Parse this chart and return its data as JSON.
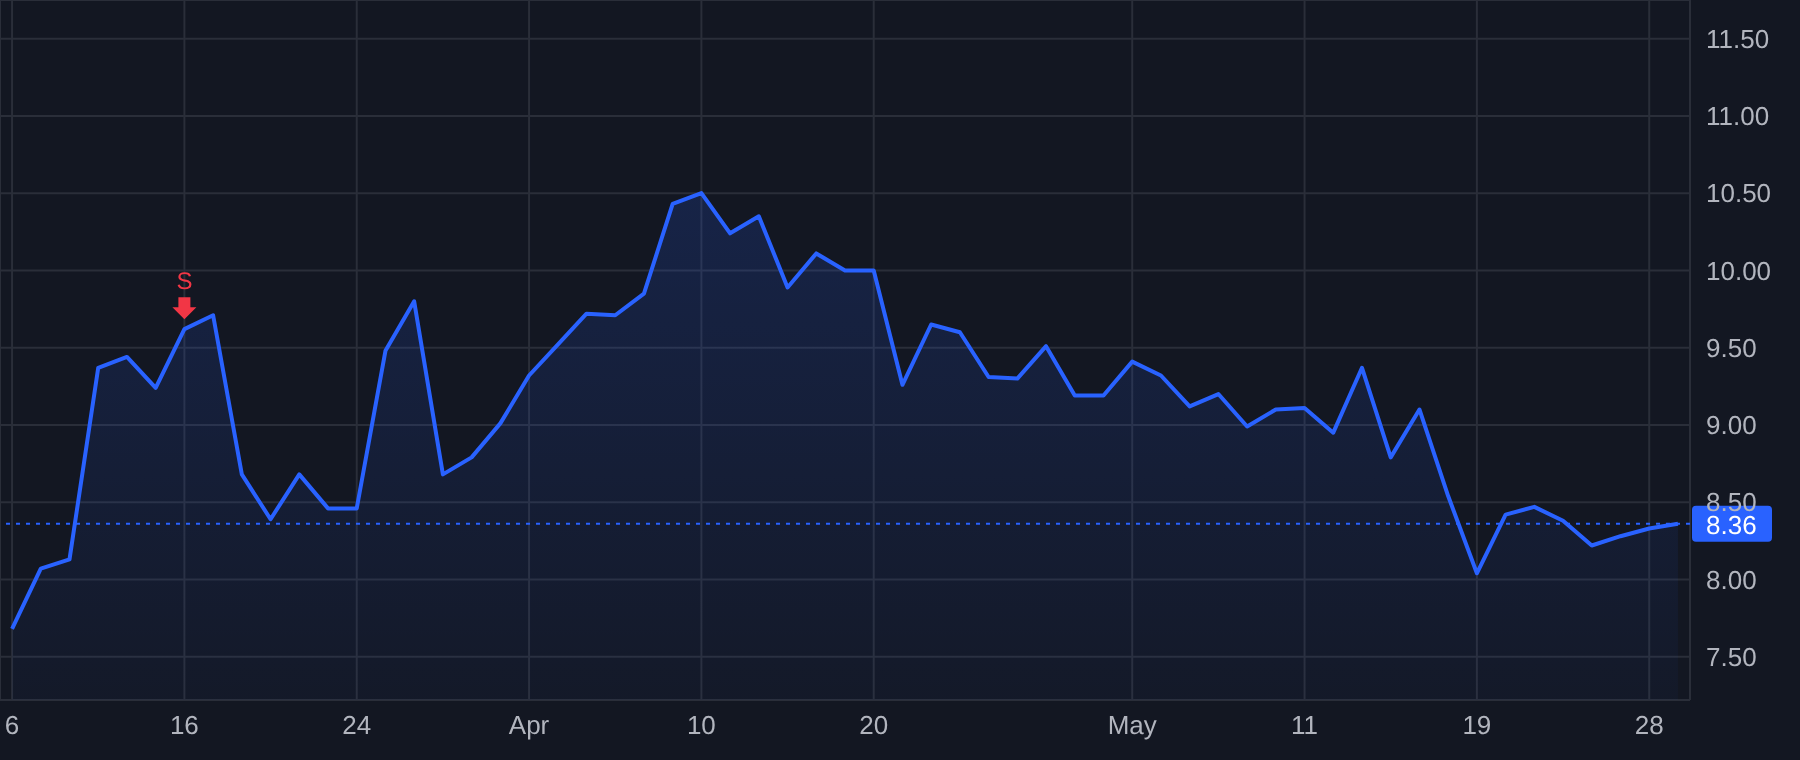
{
  "chart_data": {
    "type": "area",
    "categories": [
      "6",
      null,
      null,
      null,
      null,
      null,
      "16",
      null,
      null,
      null,
      null,
      null,
      "24",
      null,
      null,
      null,
      null,
      null,
      "Apr",
      null,
      null,
      null,
      null,
      null,
      "10",
      null,
      null,
      null,
      null,
      null,
      "20",
      null,
      null,
      null,
      null,
      null,
      null,
      null,
      null,
      "May",
      null,
      null,
      null,
      null,
      null,
      "11",
      null,
      null,
      null,
      null,
      null,
      "19",
      null,
      null,
      null,
      null,
      null,
      "28",
      null
    ],
    "series": [
      {
        "color": "#2962ff",
        "values": [
          7.68,
          8.07,
          8.13,
          9.37,
          9.44,
          9.24,
          9.62,
          9.71,
          8.68,
          8.39,
          8.68,
          8.46,
          8.46,
          9.48,
          9.8,
          8.68,
          8.79,
          9.01,
          9.32,
          9.52,
          9.72,
          9.71,
          9.85,
          10.43,
          10.5,
          10.24,
          10.35,
          9.89,
          10.11,
          10.0,
          10.0,
          9.26,
          9.65,
          9.6,
          9.31,
          9.3,
          9.51,
          9.19,
          9.19,
          9.41,
          9.32,
          9.12,
          9.2,
          8.99,
          9.1,
          9.11,
          8.95,
          9.37,
          8.79,
          9.1,
          8.54,
          8.04,
          8.42,
          8.47,
          8.38,
          8.22,
          8.28,
          8.33,
          8.36
        ]
      }
    ],
    "ylim": [
      7.22,
      11.75
    ],
    "yticks": [
      {
        "value": 7.5,
        "label": "7.50"
      },
      {
        "value": 8,
        "label": "8.00"
      },
      {
        "value": 8.5,
        "label": "8.50"
      },
      {
        "value": 9,
        "label": "9.00"
      },
      {
        "value": 9.5,
        "label": "9.50"
      },
      {
        "value": 10,
        "label": "10.00"
      },
      {
        "value": 10.5,
        "label": "10.50"
      },
      {
        "value": 11,
        "label": "11.00"
      },
      {
        "value": 11.5,
        "label": "11.50"
      }
    ],
    "grid": true,
    "line_style": "solid",
    "marker": "none",
    "ref_lines": [
      {
        "axis": "y",
        "value": 8.36,
        "label": "8.36",
        "color": "#2962ff",
        "line_style": "dotted"
      }
    ],
    "annotations": [
      {
        "text": "S",
        "x": "16",
        "y": 9.62
      }
    ]
  }
}
